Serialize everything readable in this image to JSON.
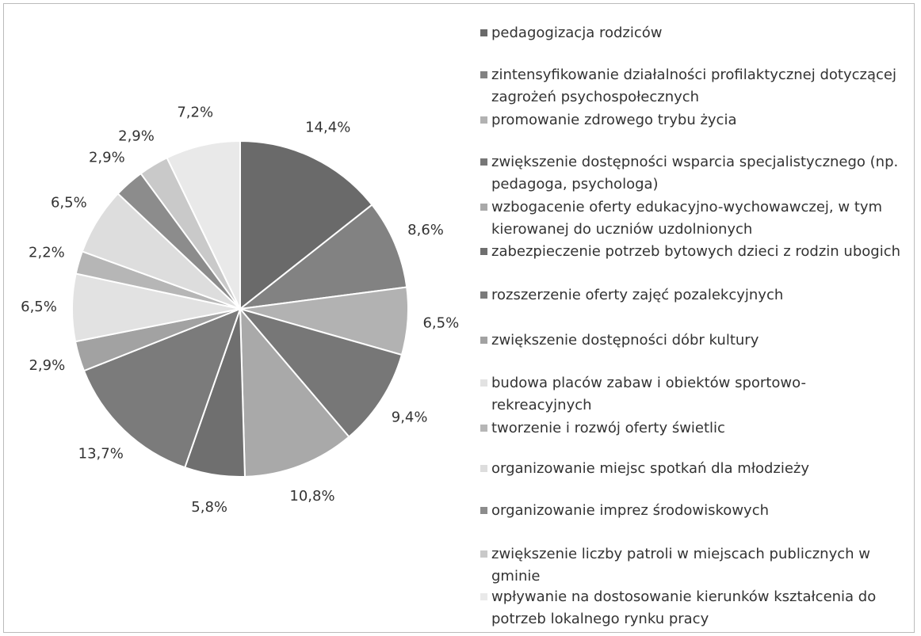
{
  "chart_data": {
    "type": "pie",
    "categories": [
      "pedagogizacja rodziców",
      "zintensyfikowanie działalności profilaktycznej dotyczącej zagrożeń psychospołecznych",
      "promowanie zdrowego trybu życia",
      "zwiększenie dostępności wsparcia specjalistycznego (np. pedagoga, psychologa)",
      "wzbogacenie oferty edukacyjno-wychowawczej, w tym kierowanej do uczniów uzdolnionych",
      "zabezpieczenie potrzeb bytowych dzieci z rodzin ubogich",
      "rozszerzenie oferty zajęć pozalekcyjnych",
      "zwiększenie dostępności dóbr kultury",
      "budowa placów zabaw i obiektów sportowo-rekreacyjnych",
      "tworzenie i rozwój oferty świetlic",
      "organizowanie miejsc spotkań dla młodzieży",
      "organizowanie imprez środowiskowych",
      "zwiększenie liczby patroli w miejscach publicznych w gminie",
      "wpływanie na dostosowanie kierunków kształcenia do potrzeb lokalnego rynku pracy"
    ],
    "values": [
      14.4,
      8.6,
      6.5,
      9.4,
      10.8,
      5.8,
      13.7,
      2.9,
      6.5,
      2.2,
      6.5,
      2.9,
      2.9,
      7.2
    ],
    "value_labels": [
      "14,4%",
      "8,6%",
      "6,5%",
      "9,4%",
      "10,8%",
      "5,8%",
      "13,7%",
      "2,9%",
      "6,5%",
      "2,2%",
      "6,5%",
      "2,9%",
      "2,9%",
      "7,2%"
    ],
    "colors": [
      "#6a6a6a",
      "#828282",
      "#b2b2b2",
      "#777777",
      "#a9a9a9",
      "#6f6f6f",
      "#7b7b7b",
      "#a2a2a2",
      "#e2e2e2",
      "#b6b6b6",
      "#dddddd",
      "#8c8c8c",
      "#c9c9c9",
      "#e9e9e9"
    ]
  }
}
